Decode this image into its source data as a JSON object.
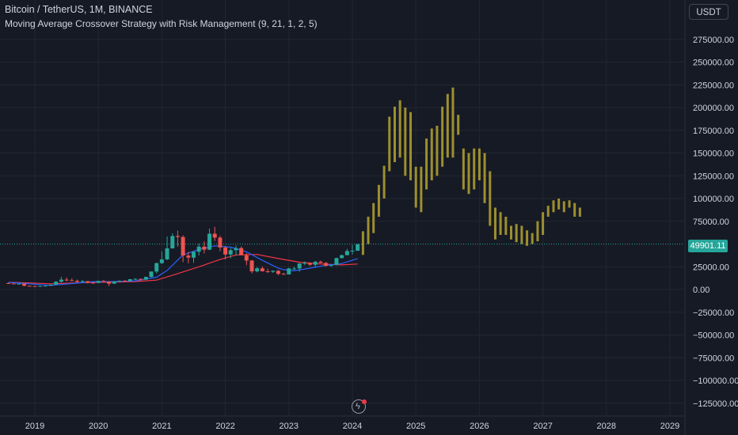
{
  "header": {
    "title": "Bitcoin / TetherUS, 1M, BINANCE",
    "subtitle": "Moving Average Crossover Strategy with Risk Management (9, 21, 1, 2, 5)",
    "currency": "USDT",
    "last_price": "49901.11"
  },
  "icons": {
    "bolt": "lightning-icon"
  },
  "colors": {
    "background": "#161a25",
    "grid": "#232631",
    "text": "#d1d4dc",
    "up": "#26a69a",
    "down": "#ef5350",
    "projection": "#9d8f2e",
    "ma_fast": "#2962ff",
    "ma_slow": "#f23645",
    "price_line": "#26a69a"
  },
  "chart_data": {
    "type": "candlestick",
    "title": "Bitcoin / TetherUS, 1M, BINANCE",
    "ylim": [
      -135000,
      290000
    ],
    "xlim": [
      2018.55,
      2029.3
    ],
    "x_ticks": [
      "2019",
      "2020",
      "2021",
      "2022",
      "2023",
      "2024",
      "2025",
      "2026",
      "2027",
      "2028",
      "2029"
    ],
    "y_ticks": [
      "275000.00",
      "250000.00",
      "225000.00",
      "200000.00",
      "175000.00",
      "150000.00",
      "125000.00",
      "100000.00",
      "75000.00",
      "25000.00",
      "0.00",
      "−25000.00",
      "−50000.00",
      "−75000.00",
      "−100000.00",
      "−125000.00"
    ],
    "last_price": 49901.11,
    "grid": true,
    "candles": [
      [
        2018.583,
        7000,
        7400,
        6100,
        6600
      ],
      [
        2018.667,
        6600,
        6800,
        6200,
        6300
      ],
      [
        2018.75,
        6300,
        6600,
        6200,
        6350
      ],
      [
        2018.833,
        6350,
        6500,
        3500,
        4000
      ],
      [
        2018.917,
        4000,
        4300,
        3200,
        3700
      ],
      [
        2019.0,
        3700,
        4100,
        3300,
        3400
      ],
      [
        2019.083,
        3400,
        4200,
        3300,
        3800
      ],
      [
        2019.167,
        3800,
        4100,
        3700,
        4100
      ],
      [
        2019.25,
        4100,
        5600,
        4100,
        5300
      ],
      [
        2019.333,
        5300,
        9100,
        5300,
        8600
      ],
      [
        2019.417,
        8600,
        13900,
        7400,
        10800
      ],
      [
        2019.5,
        10800,
        13200,
        9000,
        10100
      ],
      [
        2019.583,
        10100,
        12300,
        9300,
        9600
      ],
      [
        2019.667,
        9600,
        10900,
        7700,
        8300
      ],
      [
        2019.75,
        8300,
        10400,
        7300,
        9200
      ],
      [
        2019.833,
        9200,
        9300,
        6500,
        7500
      ],
      [
        2019.917,
        7500,
        7700,
        6400,
        7200
      ],
      [
        2020.0,
        7200,
        9600,
        6900,
        9400
      ],
      [
        2020.083,
        9400,
        10500,
        8500,
        8600
      ],
      [
        2020.167,
        8600,
        9200,
        3800,
        6400
      ],
      [
        2020.25,
        6400,
        9500,
        6100,
        8600
      ],
      [
        2020.333,
        8600,
        10100,
        8100,
        9400
      ],
      [
        2020.417,
        9400,
        10400,
        8900,
        9100
      ],
      [
        2020.5,
        9100,
        11500,
        8900,
        11300
      ],
      [
        2020.583,
        11300,
        12400,
        10500,
        11600
      ],
      [
        2020.667,
        11600,
        12100,
        9800,
        10800
      ],
      [
        2020.75,
        10800,
        14100,
        10400,
        13800
      ],
      [
        2020.833,
        13800,
        19900,
        13200,
        19700
      ],
      [
        2020.917,
        19700,
        29300,
        17600,
        29000
      ],
      [
        2021.0,
        29000,
        41900,
        28100,
        33100
      ],
      [
        2021.083,
        33100,
        58300,
        32300,
        45200
      ],
      [
        2021.167,
        45200,
        61800,
        44900,
        58800
      ],
      [
        2021.25,
        58800,
        64800,
        47000,
        57700
      ],
      [
        2021.333,
        57700,
        59500,
        30000,
        37300
      ],
      [
        2021.417,
        37300,
        41300,
        28800,
        35000
      ],
      [
        2021.5,
        35000,
        42500,
        29300,
        41500
      ],
      [
        2021.583,
        41500,
        50500,
        37300,
        47100
      ],
      [
        2021.667,
        47100,
        52900,
        39600,
        43800
      ],
      [
        2021.75,
        43800,
        67000,
        43300,
        61300
      ],
      [
        2021.833,
        61300,
        69000,
        53300,
        57000
      ],
      [
        2021.917,
        57000,
        59100,
        42000,
        46200
      ],
      [
        2022.0,
        46200,
        47900,
        33000,
        38500
      ],
      [
        2022.083,
        38500,
        45800,
        34300,
        43200
      ],
      [
        2022.167,
        43200,
        48200,
        37200,
        45500
      ],
      [
        2022.25,
        45500,
        47400,
        37600,
        37600
      ],
      [
        2022.333,
        37600,
        40000,
        26700,
        31800
      ],
      [
        2022.417,
        31800,
        32400,
        17600,
        19900
      ],
      [
        2022.5,
        19900,
        24700,
        18800,
        23300
      ],
      [
        2022.583,
        23300,
        25200,
        19600,
        20000
      ],
      [
        2022.667,
        20000,
        22800,
        18200,
        19400
      ],
      [
        2022.75,
        19400,
        21000,
        18200,
        20500
      ],
      [
        2022.833,
        20500,
        21400,
        15500,
        17200
      ],
      [
        2022.917,
        17200,
        18400,
        16300,
        16500
      ],
      [
        2023.0,
        16500,
        23900,
        16500,
        23100
      ],
      [
        2023.083,
        23100,
        25200,
        21400,
        23100
      ],
      [
        2023.167,
        23100,
        29200,
        19500,
        28500
      ],
      [
        2023.25,
        28500,
        31000,
        26900,
        29200
      ],
      [
        2023.333,
        29200,
        29800,
        25800,
        27200
      ],
      [
        2023.417,
        27200,
        31400,
        24800,
        30500
      ],
      [
        2023.5,
        30500,
        31800,
        28900,
        29200
      ],
      [
        2023.583,
        29200,
        30200,
        25200,
        26000
      ],
      [
        2023.667,
        26000,
        27500,
        24900,
        27000
      ],
      [
        2023.75,
        27000,
        35000,
        26500,
        34500
      ],
      [
        2023.833,
        34500,
        38400,
        34100,
        37700
      ],
      [
        2023.917,
        37700,
        44700,
        37600,
        42300
      ],
      [
        2024.0,
        42300,
        48900,
        38500,
        42600
      ],
      [
        2024.083,
        42600,
        49900,
        42400,
        49900
      ]
    ],
    "projection_bars": [
      [
        2024.167,
        38000,
        64000
      ],
      [
        2024.25,
        50000,
        80000
      ],
      [
        2024.333,
        62000,
        95000
      ],
      [
        2024.417,
        80000,
        115000
      ],
      [
        2024.5,
        100000,
        136000
      ],
      [
        2024.583,
        130000,
        190000
      ],
      [
        2024.667,
        140000,
        201000
      ],
      [
        2024.75,
        145000,
        208000
      ],
      [
        2024.833,
        125000,
        200000
      ],
      [
        2024.917,
        120000,
        195000
      ],
      [
        2025.0,
        90000,
        135000
      ],
      [
        2025.083,
        85000,
        135000
      ],
      [
        2025.167,
        110000,
        166000
      ],
      [
        2025.25,
        120000,
        177000
      ],
      [
        2025.333,
        125000,
        180000
      ],
      [
        2025.417,
        135000,
        201000
      ],
      [
        2025.5,
        145000,
        215000
      ],
      [
        2025.583,
        145000,
        222000
      ],
      [
        2025.667,
        170000,
        192000
      ],
      [
        2025.75,
        110000,
        155000
      ],
      [
        2025.833,
        105000,
        150000
      ],
      [
        2025.917,
        110000,
        155000
      ],
      [
        2026.0,
        120000,
        155000
      ],
      [
        2026.083,
        95000,
        150000
      ],
      [
        2026.167,
        70000,
        130000
      ],
      [
        2026.25,
        55000,
        90000
      ],
      [
        2026.333,
        60000,
        85000
      ],
      [
        2026.417,
        60000,
        80000
      ],
      [
        2026.5,
        55000,
        70000
      ],
      [
        2026.583,
        52000,
        72000
      ],
      [
        2026.667,
        50000,
        70000
      ],
      [
        2026.75,
        48000,
        65000
      ],
      [
        2026.833,
        50000,
        62000
      ],
      [
        2026.917,
        53000,
        75000
      ],
      [
        2027.0,
        60000,
        85000
      ],
      [
        2027.083,
        80000,
        92000
      ],
      [
        2027.167,
        85000,
        98000
      ],
      [
        2027.25,
        88000,
        100000
      ],
      [
        2027.333,
        85000,
        97000
      ],
      [
        2027.417,
        90000,
        98000
      ],
      [
        2027.5,
        80000,
        95000
      ],
      [
        2027.583,
        80000,
        90000
      ]
    ],
    "ma_fast": [
      [
        2018.583,
        7800
      ],
      [
        2018.917,
        6200
      ],
      [
        2019.25,
        4500
      ],
      [
        2019.583,
        6500
      ],
      [
        2019.917,
        8600
      ],
      [
        2020.25,
        8700
      ],
      [
        2020.583,
        9500
      ],
      [
        2020.917,
        13500
      ],
      [
        2021.083,
        21000
      ],
      [
        2021.333,
        38000
      ],
      [
        2021.583,
        44000
      ],
      [
        2021.833,
        48000
      ],
      [
        2022.083,
        46500
      ],
      [
        2022.333,
        41500
      ],
      [
        2022.583,
        32000
      ],
      [
        2022.833,
        23500
      ],
      [
        2022.917,
        21800
      ],
      [
        2023.083,
        20500
      ],
      [
        2023.333,
        23500
      ],
      [
        2023.583,
        26500
      ],
      [
        2023.833,
        28500
      ],
      [
        2024.083,
        34000
      ]
    ],
    "ma_slow": [
      [
        2018.583,
        8000
      ],
      [
        2018.917,
        7200
      ],
      [
        2019.25,
        6300
      ],
      [
        2019.583,
        7000
      ],
      [
        2019.917,
        7800
      ],
      [
        2020.25,
        8200
      ],
      [
        2020.583,
        8700
      ],
      [
        2020.917,
        10300
      ],
      [
        2021.25,
        17500
      ],
      [
        2021.583,
        25000
      ],
      [
        2021.917,
        33000
      ],
      [
        2022.167,
        38000
      ],
      [
        2022.5,
        38500
      ],
      [
        2022.833,
        34000
      ],
      [
        2023.167,
        30000
      ],
      [
        2023.5,
        28000
      ],
      [
        2023.833,
        27000
      ],
      [
        2024.083,
        28000
      ]
    ]
  }
}
